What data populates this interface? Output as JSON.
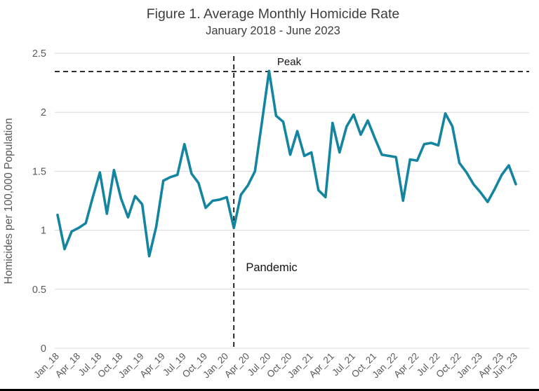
{
  "chart_data": {
    "type": "line",
    "title": "Figure 1. Average Monthly Homicide Rate",
    "subtitle": "January 2018 - June 2023",
    "xlabel": "",
    "ylabel": "Homicides per 100,000 Population",
    "ylim": [
      0,
      2.5
    ],
    "grid": "horizontal-only",
    "legend": "none",
    "x": [
      "Jan_18",
      "Feb_18",
      "Mar_18",
      "Apr_18",
      "May_18",
      "Jun_18",
      "Jul_18",
      "Aug_18",
      "Sep_18",
      "Oct_18",
      "Nov_18",
      "Dec_18",
      "Jan_19",
      "Feb_19",
      "Mar_19",
      "Apr_19",
      "May_19",
      "Jun_19",
      "Jul_19",
      "Aug_19",
      "Sep_19",
      "Oct_19",
      "Nov_19",
      "Dec_19",
      "Jan_20",
      "Feb_20",
      "Mar_20",
      "Apr_20",
      "May_20",
      "Jun_20",
      "Jul_20",
      "Aug_20",
      "Sep_20",
      "Oct_20",
      "Nov_20",
      "Dec_20",
      "Jan_21",
      "Feb_21",
      "Mar_21",
      "Apr_21",
      "May_21",
      "Jun_21",
      "Jul_21",
      "Aug_21",
      "Sep_21",
      "Oct_21",
      "Nov_21",
      "Dec_21",
      "Jan_22",
      "Feb_22",
      "Mar_22",
      "Apr_22",
      "May_22",
      "Jun_22",
      "Jul_22",
      "Aug_22",
      "Sep_22",
      "Oct_22",
      "Nov_22",
      "Dec_22",
      "Jan_23",
      "Feb_23",
      "Mar_23",
      "Apr_23",
      "May_23",
      "Jun_23"
    ],
    "series": [
      {
        "name": "Average monthly homicide rate",
        "values": [
          1.13,
          0.84,
          0.99,
          1.02,
          1.06,
          1.28,
          1.49,
          1.14,
          1.51,
          1.27,
          1.11,
          1.29,
          1.22,
          0.78,
          1.03,
          1.42,
          1.45,
          1.47,
          1.73,
          1.48,
          1.4,
          1.19,
          1.25,
          1.26,
          1.28,
          1.02,
          1.3,
          1.38,
          1.5,
          1.92,
          2.35,
          1.97,
          1.92,
          1.64,
          1.84,
          1.63,
          1.66,
          1.34,
          1.28,
          1.91,
          1.66,
          1.88,
          1.98,
          1.81,
          1.93,
          1.78,
          1.64,
          1.63,
          1.62,
          1.25,
          1.6,
          1.59,
          1.73,
          1.74,
          1.72,
          1.99,
          1.88,
          1.57,
          1.49,
          1.39,
          1.32,
          1.24,
          1.35,
          1.47,
          1.55,
          1.39
        ]
      }
    ],
    "x_tick_indices": [
      0,
      3,
      6,
      9,
      12,
      15,
      18,
      21,
      24,
      27,
      30,
      33,
      36,
      39,
      42,
      45,
      48,
      51,
      54,
      57,
      60,
      63,
      65
    ],
    "x_tick_labels": [
      "Jan_18",
      "Apr_18",
      "Jul_18",
      "Oct_18",
      "Jan_19",
      "Apr_19",
      "Jul_19",
      "Oct_19",
      "Jan_20",
      "Apr_20",
      "Jul_20",
      "Oct_20",
      "Jan_21",
      "Apr_21",
      "Jul_21",
      "Oct_21",
      "Jan_22",
      "Apr_22",
      "Jul_22",
      "Oct_22",
      "Jan_23",
      "Apr_23",
      "Jun_23"
    ],
    "y_ticks": [
      0,
      0.5,
      1,
      1.5,
      2,
      2.5
    ],
    "y_tick_labels": [
      "0",
      "0.5",
      "1",
      "1.5",
      "2",
      "2.5"
    ],
    "annotations": [
      {
        "type": "hline",
        "style": "dashed",
        "value": 2.345,
        "label": "Peak"
      },
      {
        "type": "vline",
        "style": "dashed",
        "month": "Feb_20",
        "x_index": 25,
        "label": "Pandemic"
      }
    ],
    "colors": {
      "line": "#1485A0",
      "grid": "#DADADA",
      "axis_text": "#595959",
      "title_text": "#3D3D3D",
      "annotation": "#141414",
      "background": "#FFFFFF",
      "bottom_edge": "#000000"
    }
  }
}
